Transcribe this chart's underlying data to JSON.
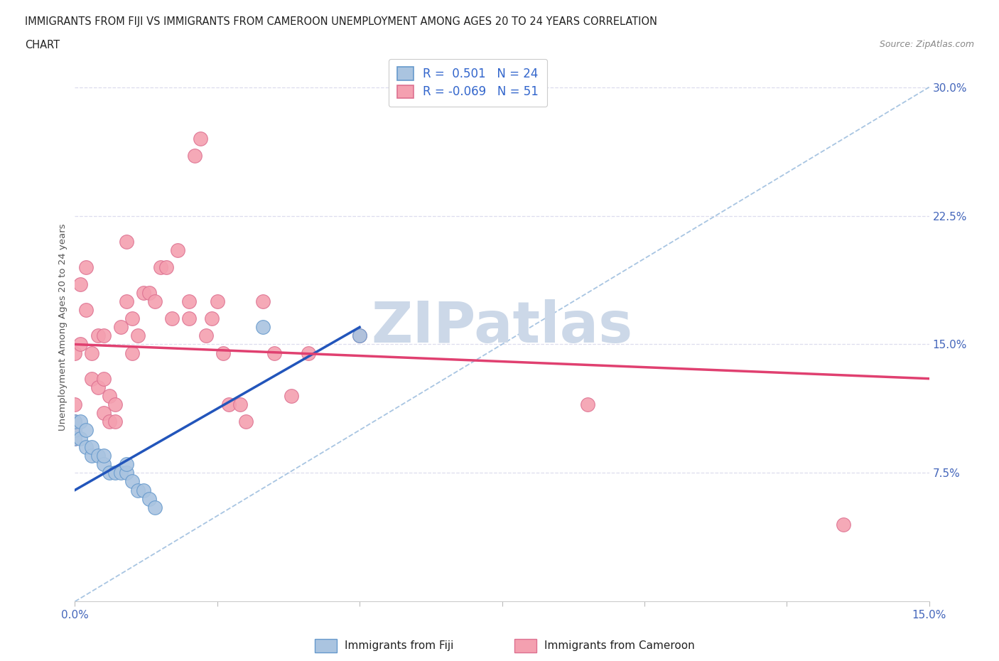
{
  "title_line1": "IMMIGRANTS FROM FIJI VS IMMIGRANTS FROM CAMEROON UNEMPLOYMENT AMONG AGES 20 TO 24 YEARS CORRELATION",
  "title_line2": "CHART",
  "source_text": "Source: ZipAtlas.com",
  "ylabel": "Unemployment Among Ages 20 to 24 years",
  "xlim": [
    0.0,
    0.15
  ],
  "ylim": [
    0.0,
    0.32
  ],
  "xtick_vals": [
    0.0,
    0.025,
    0.05,
    0.075,
    0.1,
    0.125,
    0.15
  ],
  "ytick_vals": [
    0.0,
    0.075,
    0.15,
    0.225,
    0.3
  ],
  "fiji_color": "#aac4e0",
  "cameroon_color": "#f4a0b0",
  "fiji_edge": "#6699cc",
  "cameroon_edge": "#dd7090",
  "fiji_r": "0.501",
  "fiji_n": "24",
  "cameroon_r": "-0.069",
  "cameroon_n": "51",
  "fiji_scatter_x": [
    0.0,
    0.0,
    0.0,
    0.001,
    0.001,
    0.002,
    0.002,
    0.003,
    0.003,
    0.004,
    0.005,
    0.005,
    0.006,
    0.007,
    0.008,
    0.009,
    0.009,
    0.01,
    0.011,
    0.012,
    0.013,
    0.014,
    0.033,
    0.05
  ],
  "fiji_scatter_y": [
    0.095,
    0.1,
    0.105,
    0.095,
    0.105,
    0.09,
    0.1,
    0.085,
    0.09,
    0.085,
    0.08,
    0.085,
    0.075,
    0.075,
    0.075,
    0.075,
    0.08,
    0.07,
    0.065,
    0.065,
    0.06,
    0.055,
    0.16,
    0.155
  ],
  "cameroon_scatter_x": [
    0.0,
    0.0,
    0.0,
    0.0,
    0.0,
    0.001,
    0.001,
    0.002,
    0.002,
    0.003,
    0.003,
    0.004,
    0.004,
    0.005,
    0.005,
    0.005,
    0.006,
    0.006,
    0.007,
    0.007,
    0.008,
    0.009,
    0.009,
    0.01,
    0.01,
    0.011,
    0.012,
    0.013,
    0.014,
    0.015,
    0.016,
    0.017,
    0.018,
    0.02,
    0.02,
    0.021,
    0.022,
    0.023,
    0.024,
    0.025,
    0.026,
    0.027,
    0.029,
    0.03,
    0.033,
    0.035,
    0.038,
    0.041,
    0.05,
    0.09,
    0.135
  ],
  "cameroon_scatter_y": [
    0.095,
    0.1,
    0.105,
    0.115,
    0.145,
    0.15,
    0.185,
    0.17,
    0.195,
    0.13,
    0.145,
    0.125,
    0.155,
    0.11,
    0.13,
    0.155,
    0.105,
    0.12,
    0.105,
    0.115,
    0.16,
    0.175,
    0.21,
    0.145,
    0.165,
    0.155,
    0.18,
    0.18,
    0.175,
    0.195,
    0.195,
    0.165,
    0.205,
    0.165,
    0.175,
    0.26,
    0.27,
    0.155,
    0.165,
    0.175,
    0.145,
    0.115,
    0.115,
    0.105,
    0.175,
    0.145,
    0.12,
    0.145,
    0.155,
    0.115,
    0.045
  ],
  "fiji_trend_x": [
    0.0,
    0.05
  ],
  "fiji_trend_y": [
    0.065,
    0.16
  ],
  "cameroon_trend_x": [
    0.0,
    0.15
  ],
  "cameroon_trend_y": [
    0.15,
    0.13
  ],
  "ref_line_x": [
    0.0,
    0.15
  ],
  "ref_line_y": [
    0.0,
    0.3
  ],
  "watermark": "ZIPatlas",
  "watermark_color": "#ccd8e8",
  "legend_label_fiji": "Immigrants from Fiji",
  "legend_label_cameroon": "Immigrants from Cameroon",
  "title_color": "#222222",
  "axis_label_color": "#4466bb",
  "grid_color": "#ddddee",
  "trend_fiji_color": "#2255bb",
  "trend_cameroon_color": "#e04070"
}
